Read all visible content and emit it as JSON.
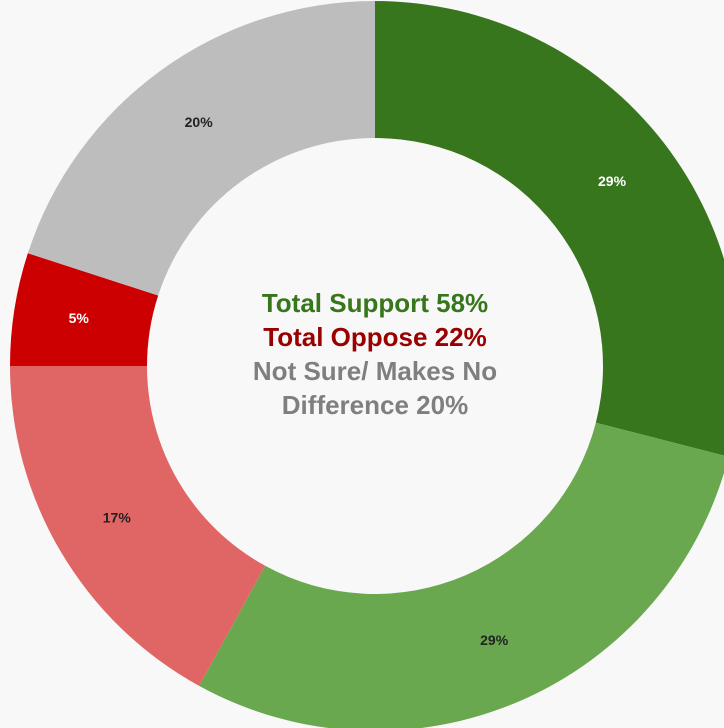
{
  "chart_data": {
    "type": "pie",
    "donut": true,
    "slices": [
      {
        "label": "29%",
        "value": 29,
        "color": "#38761d",
        "label_color": "#ffffff"
      },
      {
        "label": "29%",
        "value": 29,
        "color": "#6aa84f",
        "label_color": "#222222"
      },
      {
        "label": "17%",
        "value": 17,
        "color": "#e06666",
        "label_color": "#222222"
      },
      {
        "label": "5%",
        "value": 5,
        "color": "#cc0000",
        "label_color": "#ffffff"
      },
      {
        "label": "20%",
        "value": 20,
        "color": "#bdbdbd",
        "label_color": "#222222"
      }
    ],
    "center_text": {
      "support": "Total Support 58%",
      "oppose": "Total Oppose 22%",
      "unsure": "Not Sure/ Makes No Difference 20%"
    },
    "colors": {
      "support_text": "#38761d",
      "oppose_text": "#990000",
      "unsure_text": "#7f7f7f"
    }
  }
}
